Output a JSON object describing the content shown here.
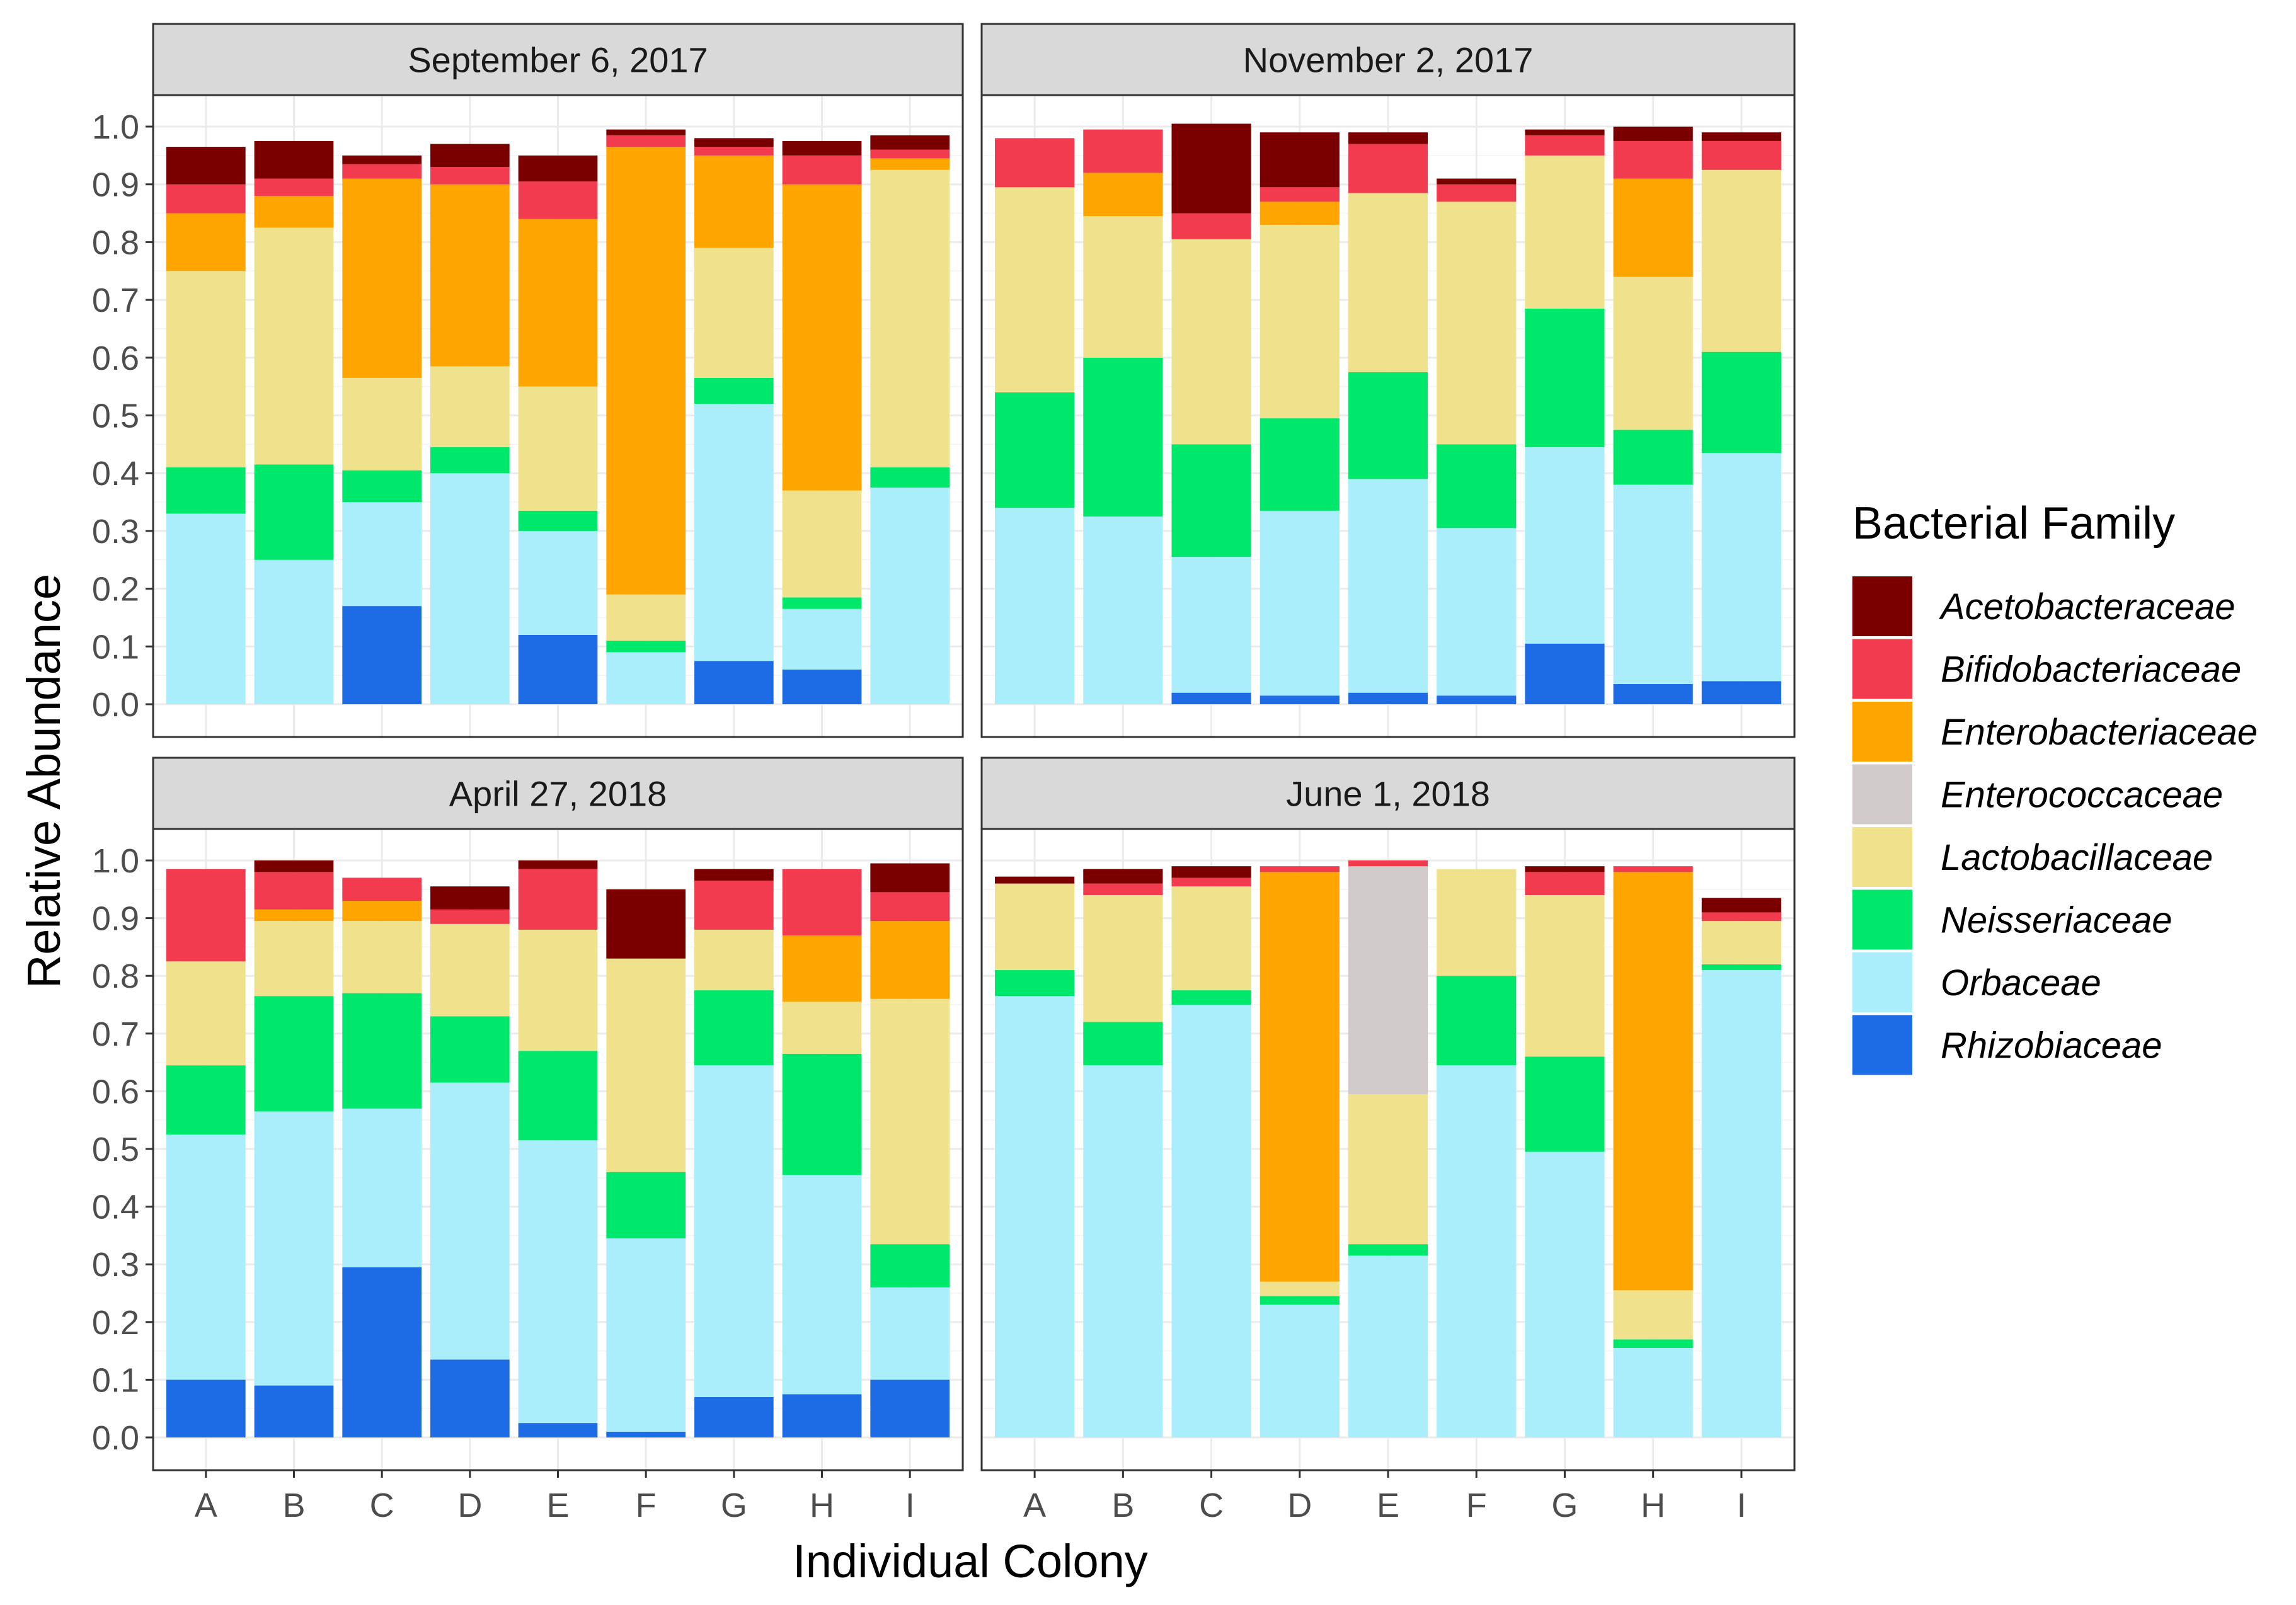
{
  "chart_data": {
    "type": "bar",
    "stacked": true,
    "xlabel": "Individual Colony",
    "ylabel": "Relative Abundance",
    "ylim": [
      0,
      1.0
    ],
    "y_ticks": [
      "0.0",
      "0.1",
      "0.2",
      "0.3",
      "0.4",
      "0.5",
      "0.6",
      "0.7",
      "0.8",
      "0.9",
      "1.0"
    ],
    "categories": [
      "A",
      "B",
      "C",
      "D",
      "E",
      "F",
      "G",
      "H",
      "I"
    ],
    "legend": {
      "title": "Bacterial Family",
      "position": "right",
      "entries": [
        {
          "name": "Acetobacteraceae",
          "color": "#7a0000"
        },
        {
          "name": "Bifidobacteriaceae",
          "color": "#f23b4f"
        },
        {
          "name": "Enterobacteriaceae",
          "color": "#ffa500"
        },
        {
          "name": "Enterococcaceae",
          "color": "#d0caca"
        },
        {
          "name": "Lactobacillaceae",
          "color": "#f0e28c"
        },
        {
          "name": "Neisseriaceae",
          "color": "#00e86c"
        },
        {
          "name": "Orbaceae",
          "color": "#aaeefc"
        },
        {
          "name": "Rhizobiaceae",
          "color": "#1e6be6"
        }
      ]
    },
    "stack_order_bottom_to_top": [
      "Rhizobiaceae",
      "Orbaceae",
      "Neisseriaceae",
      "Lactobacillaceae",
      "Enterococcaceae",
      "Enterobacteriaceae",
      "Bifidobacteriaceae",
      "Acetobacteraceae"
    ],
    "panels": [
      {
        "title": "September 6, 2017",
        "series": [
          {
            "name": "Rhizobiaceae",
            "values": [
              0,
              0,
              0.17,
              0,
              0.12,
              0,
              0.075,
              0.06,
              0
            ]
          },
          {
            "name": "Orbaceae",
            "values": [
              0.33,
              0.25,
              0.18,
              0.4,
              0.18,
              0.09,
              0.445,
              0.105,
              0.375
            ]
          },
          {
            "name": "Neisseriaceae",
            "values": [
              0.08,
              0.165,
              0.055,
              0.045,
              0.035,
              0.02,
              0.045,
              0.02,
              0.035
            ]
          },
          {
            "name": "Lactobacillaceae",
            "values": [
              0.34,
              0.41,
              0.16,
              0.14,
              0.215,
              0.08,
              0.225,
              0.185,
              0.515
            ]
          },
          {
            "name": "Enterococcaceae",
            "values": [
              0,
              0,
              0,
              0,
              0,
              0,
              0,
              0,
              0
            ]
          },
          {
            "name": "Enterobacteriaceae",
            "values": [
              0.1,
              0.055,
              0.345,
              0.315,
              0.29,
              0.775,
              0.16,
              0.53,
              0.02
            ]
          },
          {
            "name": "Bifidobacteriaceae",
            "values": [
              0.05,
              0.03,
              0.025,
              0.03,
              0.065,
              0.02,
              0.015,
              0.05,
              0.015
            ]
          },
          {
            "name": "Acetobacteraceae",
            "values": [
              0.065,
              0.065,
              0.015,
              0.04,
              0.045,
              0.01,
              0.015,
              0.025,
              0.025
            ]
          }
        ]
      },
      {
        "title": "November 2, 2017",
        "series": [
          {
            "name": "Rhizobiaceae",
            "values": [
              0,
              0,
              0.02,
              0.015,
              0.02,
              0.015,
              0.105,
              0.035,
              0.04
            ]
          },
          {
            "name": "Orbaceae",
            "values": [
              0.34,
              0.325,
              0.235,
              0.32,
              0.37,
              0.29,
              0.34,
              0.345,
              0.395
            ]
          },
          {
            "name": "Neisseriaceae",
            "values": [
              0.2,
              0.275,
              0.195,
              0.16,
              0.185,
              0.145,
              0.24,
              0.095,
              0.175
            ]
          },
          {
            "name": "Lactobacillaceae",
            "values": [
              0.355,
              0.245,
              0.355,
              0.335,
              0.31,
              0.42,
              0.265,
              0.265,
              0.315
            ]
          },
          {
            "name": "Enterococcaceae",
            "values": [
              0,
              0,
              0,
              0,
              0,
              0,
              0,
              0,
              0
            ]
          },
          {
            "name": "Enterobacteriaceae",
            "values": [
              0,
              0.075,
              0,
              0.04,
              0,
              0,
              0,
              0.17,
              0
            ]
          },
          {
            "name": "Bifidobacteriaceae",
            "values": [
              0.085,
              0.075,
              0.045,
              0.025,
              0.085,
              0.03,
              0.035,
              0.065,
              0.05
            ]
          },
          {
            "name": "Acetobacteraceae",
            "values": [
              0,
              0,
              0.155,
              0.095,
              0.02,
              0.01,
              0.01,
              0.025,
              0.015
            ]
          }
        ]
      },
      {
        "title": "April 27, 2018",
        "series": [
          {
            "name": "Rhizobiaceae",
            "values": [
              0.1,
              0.09,
              0.295,
              0.135,
              0.025,
              0.01,
              0.07,
              0.075,
              0.1
            ]
          },
          {
            "name": "Orbaceae",
            "values": [
              0.425,
              0.475,
              0.275,
              0.48,
              0.49,
              0.335,
              0.575,
              0.38,
              0.16
            ]
          },
          {
            "name": "Neisseriaceae",
            "values": [
              0.12,
              0.2,
              0.2,
              0.115,
              0.155,
              0.115,
              0.13,
              0.21,
              0.075
            ]
          },
          {
            "name": "Lactobacillaceae",
            "values": [
              0.18,
              0.13,
              0.125,
              0.16,
              0.21,
              0.37,
              0.105,
              0.09,
              0.425
            ]
          },
          {
            "name": "Enterococcaceae",
            "values": [
              0,
              0,
              0,
              0,
              0,
              0,
              0,
              0,
              0
            ]
          },
          {
            "name": "Enterobacteriaceae",
            "values": [
              0,
              0.02,
              0.035,
              0,
              0,
              0,
              0,
              0.115,
              0.135
            ]
          },
          {
            "name": "Bifidobacteriaceae",
            "values": [
              0.16,
              0.065,
              0.04,
              0.025,
              0.105,
              0,
              0.085,
              0.115,
              0.05
            ]
          },
          {
            "name": "Acetobacteraceae",
            "values": [
              0,
              0.02,
              0,
              0.04,
              0.015,
              0.12,
              0.02,
              0,
              0.05
            ]
          }
        ]
      },
      {
        "title": "June 1, 2018",
        "series": [
          {
            "name": "Rhizobiaceae",
            "values": [
              0,
              0,
              0,
              0,
              0,
              0,
              0,
              0,
              0
            ]
          },
          {
            "name": "Orbaceae",
            "values": [
              0.765,
              0.645,
              0.75,
              0.23,
              0.315,
              0.645,
              0.495,
              0.155,
              0.81
            ]
          },
          {
            "name": "Neisseriaceae",
            "values": [
              0.045,
              0.075,
              0.025,
              0.015,
              0.02,
              0.155,
              0.165,
              0.015,
              0.01
            ]
          },
          {
            "name": "Lactobacillaceae",
            "values": [
              0.15,
              0.22,
              0.18,
              0.025,
              0.26,
              0.185,
              0.28,
              0.085,
              0.075
            ]
          },
          {
            "name": "Enterococcaceae",
            "values": [
              0,
              0,
              0,
              0,
              0.395,
              0,
              0,
              0,
              0
            ]
          },
          {
            "name": "Enterobacteriaceae",
            "values": [
              0,
              0,
              0,
              0.71,
              0,
              0,
              0,
              0.725,
              0
            ]
          },
          {
            "name": "Bifidobacteriaceae",
            "values": [
              0,
              0.02,
              0.015,
              0.01,
              0.01,
              0,
              0.04,
              0.01,
              0.015
            ]
          },
          {
            "name": "Acetobacteraceae",
            "values": [
              0.012,
              0.025,
              0.02,
              0,
              0,
              0,
              0.01,
              0,
              0.025
            ]
          }
        ]
      }
    ]
  }
}
